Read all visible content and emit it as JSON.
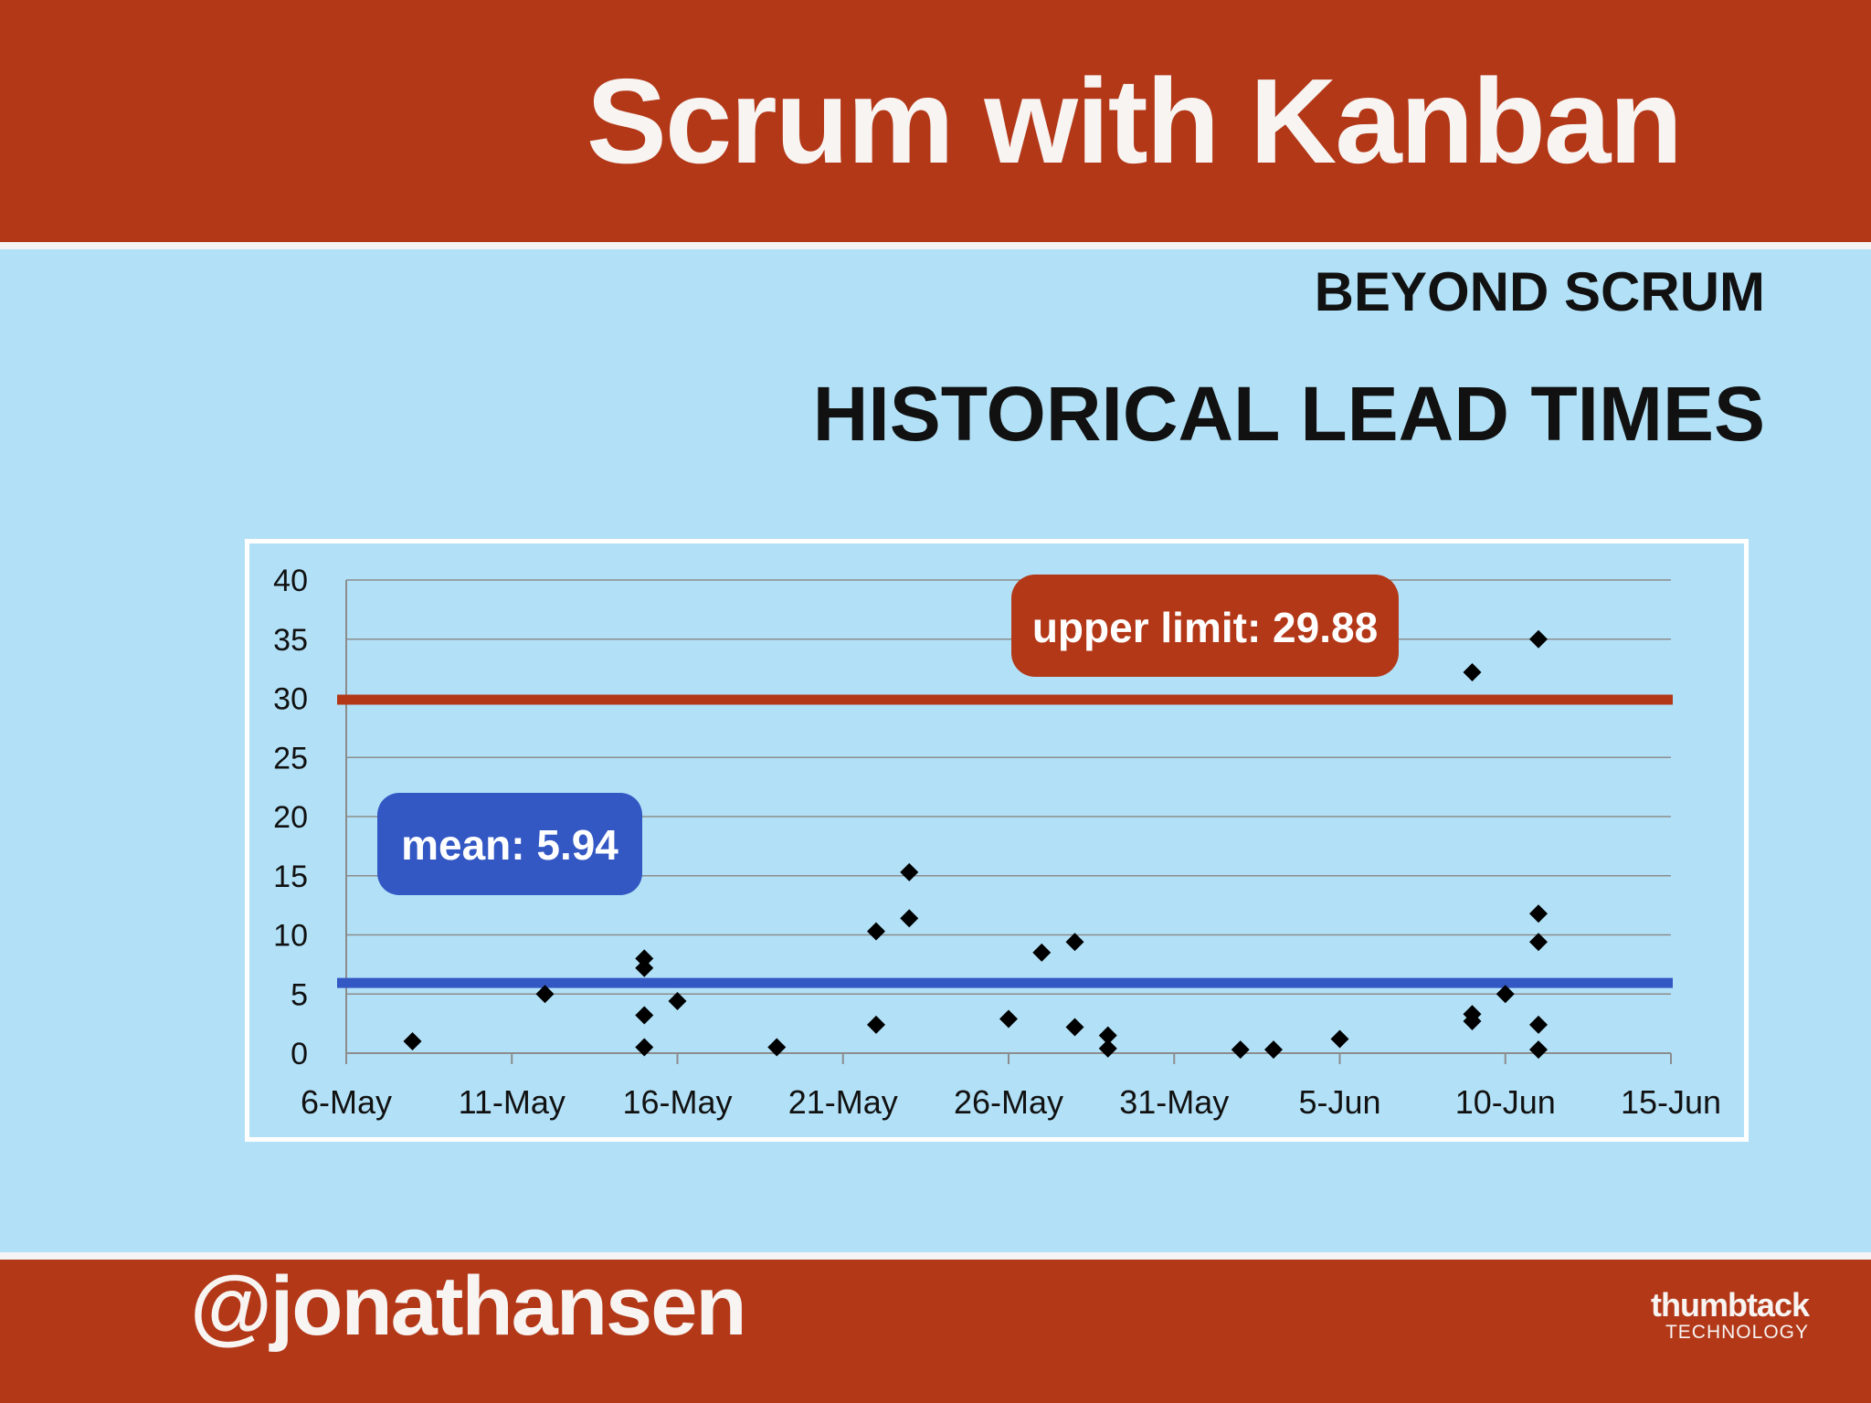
{
  "slide": {
    "title": "Scrum with Kanban",
    "subtitle": "BEYOND SCRUM",
    "section_title": "HISTORICAL LEAD TIMES",
    "handle": "@jonathansen",
    "logo": {
      "main": "thumbtack",
      "sub": "TECHNOLOGY"
    }
  },
  "colors": {
    "brand": "#b33818",
    "background": "#b2e1f7",
    "mean": "#3358c4",
    "upper_limit": "#b33818",
    "marker": "#000000"
  },
  "chart_data": {
    "type": "scatter",
    "title": "",
    "xlabel": "",
    "ylabel": "",
    "ylim": [
      0,
      40
    ],
    "yticks": [
      0,
      5,
      10,
      15,
      20,
      25,
      30,
      35,
      40
    ],
    "xlim_days": [
      0,
      40
    ],
    "xtick_days": [
      0,
      5,
      10,
      15,
      20,
      25,
      30,
      35,
      40
    ],
    "xtick_labels": [
      "6-May",
      "11-May",
      "16-May",
      "21-May",
      "26-May",
      "31-May",
      "5-Jun",
      "10-Jun",
      "15-Jun"
    ],
    "x_unit": "days since 6-May",
    "grid": true,
    "series": [
      {
        "name": "Lead time",
        "points": [
          [
            2,
            1
          ],
          [
            6,
            5
          ],
          [
            9,
            8
          ],
          [
            9,
            7.2
          ],
          [
            9,
            3.2
          ],
          [
            9,
            0.5
          ],
          [
            10,
            4.4
          ],
          [
            13,
            0.5
          ],
          [
            16,
            10.3
          ],
          [
            16,
            2.4
          ],
          [
            17,
            15.3
          ],
          [
            17,
            11.4
          ],
          [
            20,
            2.9
          ],
          [
            21,
            8.5
          ],
          [
            22,
            9.4
          ],
          [
            22,
            2.2
          ],
          [
            23,
            1.5
          ],
          [
            23,
            0.4
          ],
          [
            27,
            0.3
          ],
          [
            28,
            0.3
          ],
          [
            30,
            1.2
          ],
          [
            34,
            32.2
          ],
          [
            34,
            3.3
          ],
          [
            34,
            2.7
          ],
          [
            35,
            5
          ],
          [
            36,
            35
          ],
          [
            36,
            11.8
          ],
          [
            36,
            9.4
          ],
          [
            36,
            2.4
          ],
          [
            36,
            0.3
          ]
        ]
      }
    ],
    "reference_lines": [
      {
        "name": "upper limit",
        "value": 29.88,
        "label": "upper limit: 29.88",
        "color": "#b33818"
      },
      {
        "name": "mean",
        "value": 5.94,
        "label": "mean: 5.94",
        "color": "#3358c4"
      }
    ]
  }
}
